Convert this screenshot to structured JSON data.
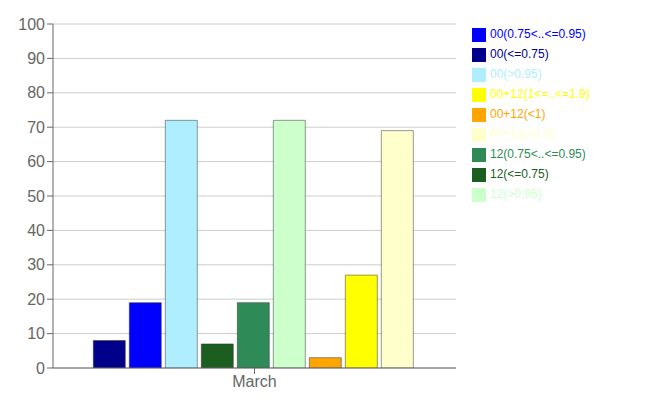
{
  "chart_data": {
    "type": "bar",
    "categories": [
      "March"
    ],
    "series": [
      {
        "name": "00(<=0.75)",
        "color": "#00008B",
        "values": [
          8
        ]
      },
      {
        "name": "00(0.75<..<=0.95)",
        "color": "#0000FF",
        "values": [
          19
        ]
      },
      {
        "name": "00(>0.95)",
        "color": "#AEEEFF",
        "values": [
          72
        ]
      },
      {
        "name": "12(<=0.75)",
        "color": "#1B5E20",
        "values": [
          7
        ]
      },
      {
        "name": "12(0.75<..<=0.95)",
        "color": "#2E8B57",
        "values": [
          19
        ]
      },
      {
        "name": "12(>0.95)",
        "color": "#CCFFCC",
        "values": [
          72
        ]
      },
      {
        "name": "00+12(<1)",
        "color": "#FFA500",
        "values": [
          3
        ]
      },
      {
        "name": "00+12(1<=..<=1.9)",
        "color": "#FFFF00",
        "values": [
          27
        ]
      },
      {
        "name": "00+12(>1.9)",
        "color": "#FFFFCC",
        "values": [
          69
        ]
      }
    ],
    "ylim": [
      0,
      100
    ],
    "yticks": [
      0,
      10,
      20,
      30,
      40,
      50,
      60,
      70,
      80,
      90,
      100
    ],
    "grid": true,
    "legend": "right"
  }
}
